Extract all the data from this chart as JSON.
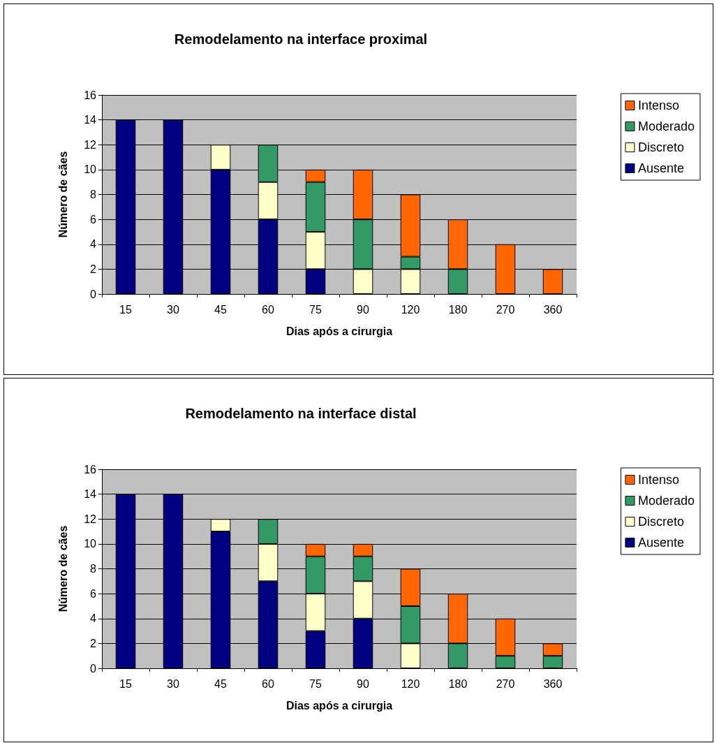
{
  "chart_data": [
    {
      "type": "bar",
      "title": "Remodelamento na interface proximal",
      "xlabel": "Dias após a cirurgia",
      "ylabel": "Número de cães",
      "categories": [
        "15",
        "30",
        "45",
        "60",
        "75",
        "90",
        "120",
        "180",
        "270",
        "360"
      ],
      "stacked": true,
      "ylim": [
        0,
        16
      ],
      "yticks": [
        0,
        2,
        4,
        6,
        8,
        10,
        12,
        14,
        16
      ],
      "grid": "y",
      "legend": "right",
      "series": [
        {
          "name": "Ausente",
          "color": "#000080",
          "values": [
            14,
            14,
            10,
            6,
            2,
            0,
            0,
            0,
            0,
            0
          ]
        },
        {
          "name": "Discreto",
          "color": "#ffffcc",
          "values": [
            0,
            0,
            2,
            3,
            3,
            2,
            2,
            0,
            0,
            0
          ]
        },
        {
          "name": "Moderado",
          "color": "#339966",
          "values": [
            0,
            0,
            0,
            3,
            4,
            4,
            1,
            2,
            0,
            0
          ]
        },
        {
          "name": "Intenso",
          "color": "#ff6600",
          "values": [
            0,
            0,
            0,
            0,
            1,
            4,
            5,
            4,
            4,
            2
          ]
        }
      ]
    },
    {
      "type": "bar",
      "title": "Remodelamento na interface distal",
      "xlabel": "Dias após a cirurgia",
      "ylabel": "Número de cães",
      "categories": [
        "15",
        "30",
        "45",
        "60",
        "75",
        "90",
        "120",
        "180",
        "270",
        "360"
      ],
      "stacked": true,
      "ylim": [
        0,
        16
      ],
      "yticks": [
        0,
        2,
        4,
        6,
        8,
        10,
        12,
        14,
        16
      ],
      "grid": "y",
      "legend": "right",
      "series": [
        {
          "name": "Ausente",
          "color": "#000080",
          "values": [
            14,
            14,
            11,
            7,
            3,
            4,
            0,
            0,
            0,
            0
          ]
        },
        {
          "name": "Discreto",
          "color": "#ffffcc",
          "values": [
            0,
            0,
            1,
            3,
            3,
            3,
            2,
            0,
            0,
            0
          ]
        },
        {
          "name": "Moderado",
          "color": "#339966",
          "values": [
            0,
            0,
            0,
            2,
            3,
            2,
            3,
            2,
            1,
            1
          ]
        },
        {
          "name": "Intenso",
          "color": "#ff6600",
          "values": [
            0,
            0,
            0,
            0,
            1,
            1,
            3,
            4,
            3,
            1
          ]
        }
      ]
    }
  ]
}
